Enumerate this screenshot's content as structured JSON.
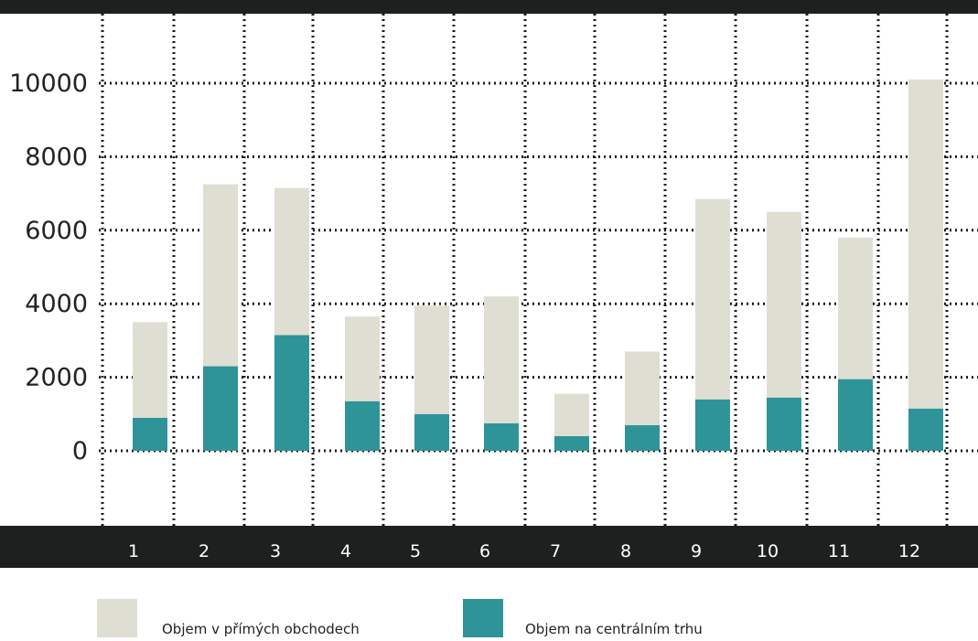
{
  "chart_data": {
    "type": "bar",
    "stacked": true,
    "categories": [
      "1",
      "2",
      "3",
      "4",
      "5",
      "6",
      "7",
      "8",
      "9",
      "10",
      "11",
      "12"
    ],
    "series": [
      {
        "name": "Objem na centrálním trhu",
        "color": "#2f9497",
        "values": [
          900,
          2300,
          3150,
          1350,
          1000,
          750,
          400,
          700,
          1400,
          1450,
          1950,
          1150
        ]
      },
      {
        "name": "Objem v přímých obchodech",
        "color": "#deded3",
        "values": [
          2600,
          4950,
          4000,
          2300,
          2950,
          3450,
          1150,
          2000,
          5450,
          5050,
          3850,
          8950
        ]
      }
    ],
    "yticks": [
      "0",
      "2000",
      "4000",
      "6000",
      "8000",
      "10000"
    ],
    "ylim": [
      0,
      10000
    ],
    "grid": true,
    "legend_position": "bottom"
  },
  "colors": {
    "axis_band": "#1e201f",
    "grid": "#1a1a1a",
    "background": "#ffffff"
  }
}
